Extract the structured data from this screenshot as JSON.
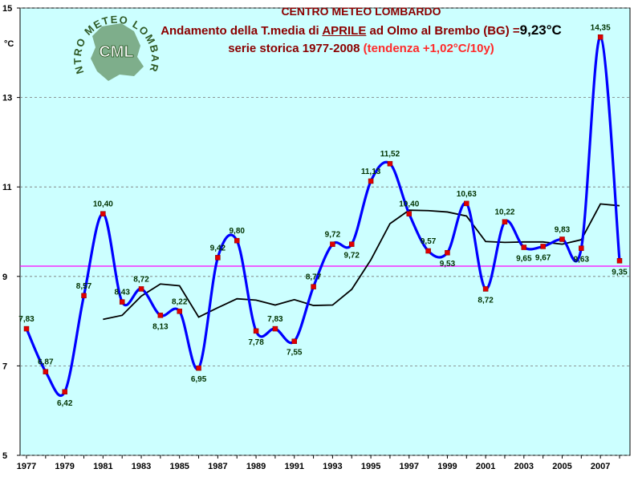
{
  "chart_data": {
    "type": "line",
    "title": "CENTRO METEO LOMBARDO",
    "subtitle_parts": {
      "prefix": "Andamento della T.media di ",
      "month": "APRILE",
      "middle": " ad Olmo al Brembo (BG) =",
      "mean_value": "9,23°C"
    },
    "series_line_parts": {
      "prefix": "serie storica 1977-2008 ",
      "trend": "(tendenza +1,02°C/10y)"
    },
    "logo_text": "CENTRO METEO LOMBARDO",
    "logo_initials": "CML",
    "ylabel": "°C",
    "ylim": [
      5,
      15
    ],
    "yticks": [
      5,
      7,
      9,
      11,
      13,
      15
    ],
    "xlim": [
      1977,
      2008
    ],
    "xticks": [
      1977,
      1979,
      1981,
      1983,
      1985,
      1987,
      1989,
      1991,
      1993,
      1995,
      1997,
      1999,
      2001,
      2003,
      2005,
      2007
    ],
    "grid": true,
    "mean_line": 9.23,
    "colors": {
      "background": "#ccffff",
      "series": "#0000ff",
      "markers": "#e00000",
      "moving_average": "#000000",
      "mean_line": "#ff00ff",
      "title": "#8b0000",
      "trend_text": "#ff2a2a",
      "data_labels": "#003300"
    },
    "series": [
      {
        "x": [
          1977,
          1978,
          1979,
          1980,
          1981,
          1982,
          1983,
          1984,
          1985,
          1986,
          1987,
          1988,
          1989,
          1990,
          1991,
          1992,
          1993,
          1994,
          1995,
          1996,
          1997,
          1998,
          1999,
          2000,
          2001,
          2002,
          2003,
          2004,
          2005,
          2006,
          2007,
          2008
        ],
        "values": [
          7.83,
          6.87,
          6.42,
          8.57,
          10.4,
          8.43,
          8.72,
          8.13,
          8.22,
          6.95,
          9.42,
          9.8,
          7.78,
          7.83,
          7.55,
          8.77,
          9.72,
          9.72,
          11.13,
          11.52,
          10.4,
          9.57,
          9.53,
          10.63,
          8.72,
          10.22,
          9.65,
          9.67,
          9.83,
          9.63,
          14.35,
          9.35
        ],
        "labels": [
          "7,83",
          "6,87",
          "6,42",
          "8,57",
          "10,40",
          "8,43",
          "8,72",
          "8,13",
          "8,22",
          "6,95",
          "9,42",
          "9,80",
          "7,78",
          "7,83",
          "7,55",
          "8,77",
          "9,72",
          "9,72",
          "11,13",
          "11,52",
          "10,40",
          "9,57",
          "9,53",
          "10,63",
          "8,72",
          "10,22",
          "9,65",
          "9,67",
          "9,83",
          "9,63",
          "14,35",
          "9,35"
        ],
        "label_side": [
          "above",
          "above",
          "below",
          "above",
          "above",
          "above",
          "above",
          "below",
          "above",
          "below",
          "above",
          "above",
          "below",
          "above",
          "below",
          "above",
          "above",
          "below",
          "above",
          "above",
          "above",
          "above",
          "below",
          "above",
          "below",
          "above",
          "below",
          "below",
          "above",
          "below",
          "above",
          "below"
        ]
      },
      {
        "x": [
          1981,
          1982,
          1983,
          1984,
          1985,
          1986,
          1987,
          1988,
          1989,
          1990,
          1991,
          1992,
          1993,
          1994,
          1995,
          1996,
          1997,
          1998,
          1999,
          2000,
          2001,
          2002,
          2003,
          2004,
          2005,
          2006,
          2007,
          2008
        ],
        "values": [
          8.04,
          8.13,
          8.56,
          8.83,
          8.79,
          8.09,
          8.3,
          8.5,
          8.47,
          8.36,
          8.48,
          8.35,
          8.36,
          8.71,
          9.37,
          10.18,
          10.48,
          10.47,
          10.44,
          10.35,
          9.78,
          9.76,
          9.77,
          9.77,
          9.72,
          9.82,
          10.62,
          10.58
        ]
      }
    ]
  }
}
